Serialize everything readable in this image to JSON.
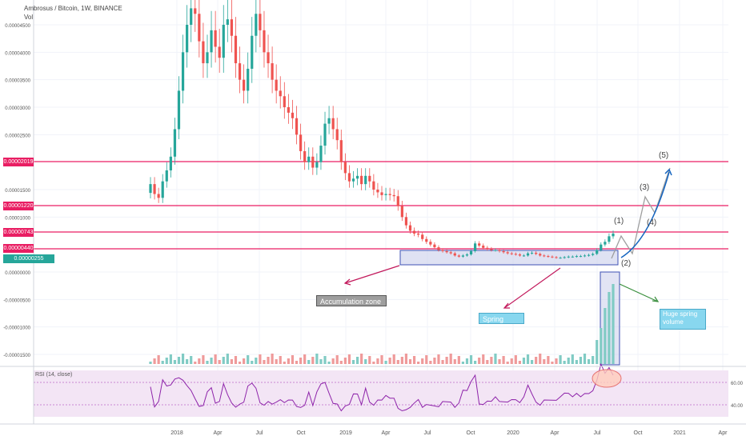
{
  "header": {
    "title": "Ambrosus / Bitcoin, 1W, BINANCE",
    "volume_label": "Vol"
  },
  "rsi": {
    "label": "RSI (14, close)",
    "ticks": [
      "60.00",
      "40.00"
    ]
  },
  "chart_data": {
    "type": "candlestick",
    "symbol": "Ambrosus / Bitcoin",
    "timeframe": "1W",
    "exchange": "BINANCE",
    "y_ticks": [
      "0.00004500",
      "0.00004000",
      "0.00003500",
      "0.00003000",
      "0.00002500",
      "0.00001500",
      "0.00001000",
      "0.00000000",
      "-0.00000500",
      "-0.00001000",
      "-0.00001500"
    ],
    "x_ticks": [
      "2018",
      "Apr",
      "Jul",
      "Oct",
      "2019",
      "Apr",
      "Jul",
      "Oct",
      "2020",
      "Apr",
      "Jul",
      "Oct",
      "2021",
      "Apr"
    ],
    "price_levels": [
      "0.00002019",
      "0.00001220",
      "0.00000743",
      "0.00000440"
    ],
    "last_price": "0.00000255",
    "approx_weekly_closes": [
      1.6e-05,
      1.42e-05,
      1.35e-05,
      1.65e-05,
      1.85e-05,
      2.1e-05,
      2.6e-05,
      3.3e-05,
      4e-05,
      4.5e-05,
      4.8e-05,
      4.7e-05,
      4.2e-05,
      3.8e-05,
      4e-05,
      4.4e-05,
      4.1e-05,
      3.9e-05,
      4.5e-05,
      4.6e-05,
      4.3e-05,
      3.8e-05,
      3.5e-05,
      3.3e-05,
      3.7e-05,
      4.3e-05,
      4.7e-05,
      4.4e-05,
      4e-05,
      3.8e-05,
      3.5e-05,
      3.3e-05,
      3.2e-05,
      3e-05,
      2.9e-05,
      2.8e-05,
      2.5e-05,
      2.2e-05,
      2e-05,
      2.1e-05,
      1.9e-05,
      2e-05,
      2.3e-05,
      2.7e-05,
      2.8e-05,
      2.6e-05,
      2.4e-05,
      2e-05,
      1.8e-05,
      1.65e-05,
      1.7e-05,
      1.75e-05,
      1.6e-05,
      1.75e-05,
      1.65e-05,
      1.5e-05,
      1.45e-05,
      1.4e-05,
      1.42e-05,
      1.4e-05,
      1.38e-05,
      1.2e-05,
      1e-05,
      8.5e-06,
      7.5e-06,
      7e-06,
      6.8e-06,
      6e-06,
      5.5e-06,
      5e-06,
      4.5e-06,
      4e-06,
      3.8e-06,
      3.6e-06,
      3.4e-06,
      3e-06,
      2.8e-06,
      3e-06,
      3.2e-06,
      3.8e-06,
      5.2e-06,
      4.8e-06,
      4.4e-06,
      4.2e-06,
      4e-06,
      4e-06,
      3.8e-06,
      3.6e-06,
      3.4e-06,
      3.3e-06,
      3.2e-06,
      3e-06,
      3e-06,
      3.4e-06,
      3.5e-06,
      3.3e-06,
      3e-06,
      2.9e-06,
      2.8e-06,
      2.7e-06,
      2.6e-06,
      2.6e-06,
      2.7e-06,
      2.8e-06,
      2.8e-06,
      2.9e-06,
      2.9e-06,
      3e-06,
      3.1e-06,
      3.3e-06,
      4e-06,
      5e-06,
      5.5e-06,
      6.5e-06,
      7e-06
    ],
    "annotations": [
      "Accumulation zone",
      "Spring",
      "Huge spring volume",
      "(1)",
      "(2)",
      "(3)",
      "(4)",
      "(5)"
    ],
    "colors": {
      "up": "#26a69a",
      "down": "#ef5350",
      "level": "#e91e63",
      "zone": "#c5cae9",
      "rsi_band": "#f3e5f5",
      "rsi_line": "#8e24aa",
      "projection": "#3f51b5",
      "arrow": "#c2185b"
    }
  }
}
